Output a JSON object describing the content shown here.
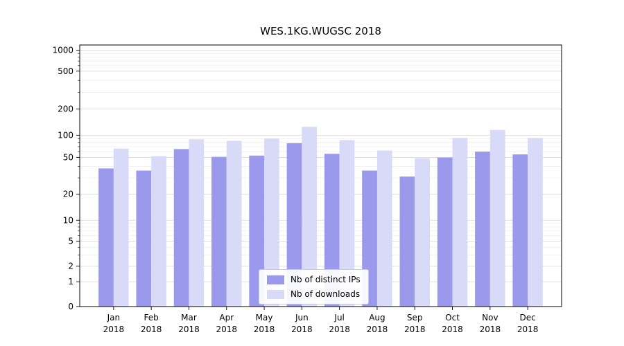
{
  "chart_data": {
    "type": "bar",
    "title": "WES.1KG.WUGSC 2018",
    "y_scale": "symlog",
    "grid": true,
    "legend_position": "lower center",
    "categories": [
      "Jan 2018",
      "Feb 2018",
      "Mar 2018",
      "Apr 2018",
      "May 2018",
      "Jun 2018",
      "Jul 2018",
      "Aug 2018",
      "Sep 2018",
      "Oct 2018",
      "Nov 2018",
      "Dec 2018"
    ],
    "category_months": [
      "Jan",
      "Feb",
      "Mar",
      "Apr",
      "May",
      "Jun",
      "Jul",
      "Aug",
      "Sep",
      "Oct",
      "Nov",
      "Dec"
    ],
    "category_year": "2018",
    "series": [
      {
        "name": "Nb of distinct IPs",
        "color": "#9a99ec",
        "values": [
          38,
          36,
          65,
          51,
          53,
          78,
          56,
          36,
          31,
          50,
          60,
          55
        ]
      },
      {
        "name": "Nb of downloads",
        "color": "#d9d9f8",
        "values": [
          66,
          52,
          88,
          84,
          90,
          125,
          86,
          62,
          49,
          92,
          115,
          92
        ]
      }
    ],
    "y_ticks": [
      0,
      1,
      2,
      5,
      10,
      20,
      50,
      100,
      200,
      500,
      1000
    ],
    "ylim": [
      0,
      1160
    ],
    "colors": {
      "grid_major": "#d7d7d7",
      "grid_minor": "#ebebeb",
      "axis": "#000000"
    }
  }
}
